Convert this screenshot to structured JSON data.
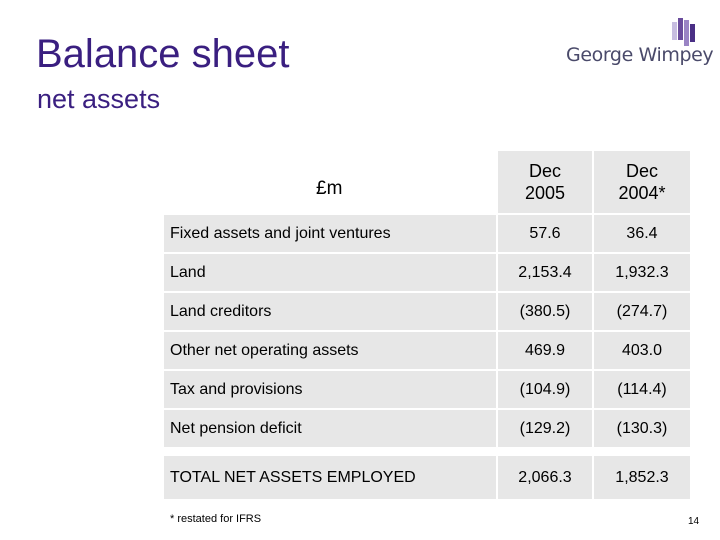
{
  "header": {
    "title": "Balance sheet",
    "subtitle": "net assets",
    "logo_text": "George Wimpey"
  },
  "table": {
    "unit_label": "£m",
    "columns": [
      {
        "line1": "Dec",
        "line2": "2005"
      },
      {
        "line1": "Dec",
        "line2": "2004*"
      }
    ],
    "rows": [
      {
        "label": "Fixed assets and joint ventures",
        "dec2005": "57.6",
        "dec2004": "36.4"
      },
      {
        "label": "Land",
        "dec2005": "2,153.4",
        "dec2004": "1,932.3"
      },
      {
        "label": "Land creditors",
        "dec2005": "(380.5)",
        "dec2004": "(274.7)"
      },
      {
        "label": "Other net operating assets",
        "dec2005": "469.9",
        "dec2004": "403.0"
      },
      {
        "label": "Tax and provisions",
        "dec2005": "(104.9)",
        "dec2004": "(114.4)"
      },
      {
        "label": "Net pension deficit",
        "dec2005": "(129.2)",
        "dec2004": "(130.3)"
      },
      {
        "label": "TOTAL NET ASSETS EMPLOYED",
        "dec2005": "2,066.3",
        "dec2004": "1,852.3"
      }
    ]
  },
  "footer": {
    "footnote": "* restated for IFRS",
    "page_number": "14"
  },
  "colors": {
    "title": "#3a1f80",
    "row_background": "#e7e7e7",
    "logo_purple": "#6a4c9c",
    "logo_light": "#c7bde0"
  }
}
